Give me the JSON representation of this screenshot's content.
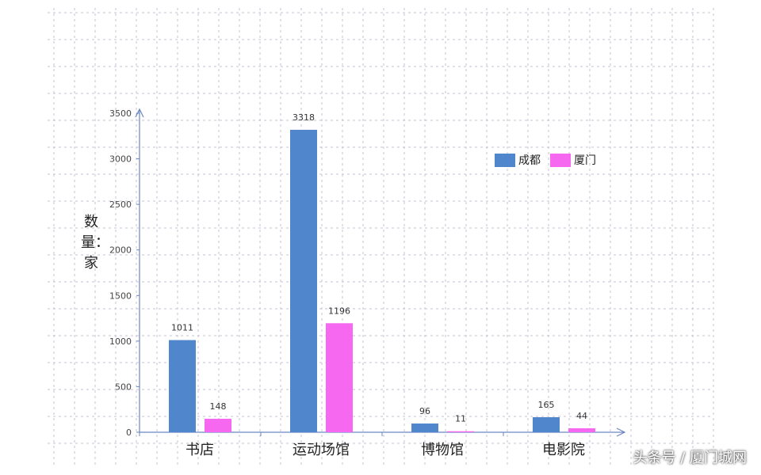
{
  "chart_data": {
    "type": "bar",
    "categories": [
      "书店",
      "运动场馆",
      "博物馆",
      "电影院"
    ],
    "series": [
      {
        "name": "成都",
        "values": [
          1011,
          3318,
          96,
          165
        ],
        "color": "#4f86cc"
      },
      {
        "name": "厦门",
        "values": [
          148,
          1196,
          11,
          44
        ],
        "color": "#f768f0"
      }
    ],
    "ylabel": "数量：家",
    "ylim": [
      0,
      3500
    ],
    "yticks": [
      0,
      500,
      1000,
      1500,
      2000,
      2500,
      3000,
      3500
    ],
    "grid": true,
    "legend": "top-right",
    "axis_color": "#6b86c2",
    "grid_color": "#c9c0d6"
  },
  "watermark": "头条号 / 厦门城网"
}
